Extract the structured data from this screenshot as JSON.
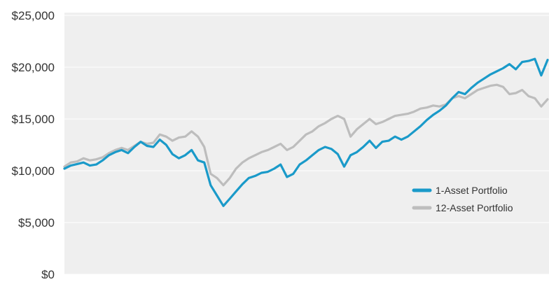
{
  "chart_data": {
    "type": "line",
    "title": "",
    "xlabel": "",
    "ylabel": "",
    "ylim": [
      0,
      25000
    ],
    "y_ticks": [
      {
        "value": 0,
        "label": "$0"
      },
      {
        "value": 5000,
        "label": "$5,000"
      },
      {
        "value": 10000,
        "label": "$10,000"
      },
      {
        "value": 15000,
        "label": "$15,000"
      },
      {
        "value": 20000,
        "label": "$20,000"
      },
      {
        "value": 25000,
        "label": "$25,000"
      }
    ],
    "grid": true,
    "legend_position": "right",
    "background": "#efefef",
    "series": [
      {
        "name": "1-Asset Portfolio",
        "color": "#1a9ac9",
        "values": [
          10200,
          10500,
          10650,
          10800,
          10500,
          10600,
          11000,
          11500,
          11800,
          12000,
          11700,
          12300,
          12800,
          12400,
          12300,
          13000,
          12500,
          11600,
          11200,
          11500,
          12000,
          11000,
          10800,
          8600,
          7600,
          6600,
          7300,
          8000,
          8700,
          9300,
          9500,
          9800,
          9900,
          10200,
          10600,
          9400,
          9700,
          10600,
          11000,
          11500,
          12000,
          12300,
          12100,
          11600,
          10400,
          11500,
          11800,
          12300,
          12900,
          12200,
          12800,
          12900,
          13300,
          13000,
          13300,
          13800,
          14300,
          14900,
          15400,
          15800,
          16300,
          17000,
          17600,
          17400,
          18000,
          18500,
          18900,
          19300,
          19600,
          19900,
          20300,
          19800,
          20500,
          20600,
          20800,
          19200,
          20700
        ]
      },
      {
        "name": "12-Asset Portfolio",
        "color": "#bdbdbd",
        "values": [
          10400,
          10800,
          10900,
          11200,
          11000,
          11100,
          11300,
          11700,
          12000,
          12200,
          12000,
          12400,
          12800,
          12600,
          12700,
          13500,
          13300,
          12900,
          13200,
          13300,
          13800,
          13300,
          12300,
          9700,
          9300,
          8600,
          9300,
          10200,
          10800,
          11200,
          11500,
          11800,
          12000,
          12300,
          12600,
          12000,
          12300,
          12900,
          13500,
          13800,
          14300,
          14600,
          15000,
          15300,
          15000,
          13300,
          14000,
          14500,
          15000,
          14500,
          14700,
          15000,
          15300,
          15400,
          15500,
          15700,
          16000,
          16100,
          16300,
          16200,
          16400,
          17000,
          17200,
          17000,
          17400,
          17800,
          18000,
          18200,
          18300,
          18100,
          17400,
          17500,
          17800,
          17200,
          17000,
          16200,
          16900
        ]
      }
    ]
  }
}
